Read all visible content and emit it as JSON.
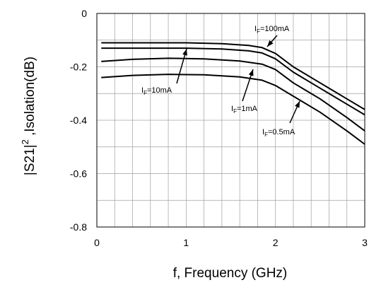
{
  "chart_data": {
    "type": "line",
    "xlabel": "f, Frequency (GHz)",
    "ylabel_main": "|S21|",
    "ylabel_sup": "2",
    "ylabel_rest": " ,Isolation(dB)",
    "xlim": [
      0,
      3
    ],
    "ylim": [
      -0.8,
      0
    ],
    "xticks": [
      0,
      1,
      2,
      3
    ],
    "xtick_labels": [
      "0",
      "1",
      "2",
      "3"
    ],
    "yticks": [
      0,
      -0.2,
      -0.4,
      -0.6,
      -0.8
    ],
    "ytick_labels": [
      "0",
      "-0.2",
      "-0.4",
      "-0.6",
      "-0.8"
    ],
    "grid": true,
    "series": [
      {
        "label_main": "I",
        "label_sub": "F",
        "label_rest": "=100mA",
        "x": [
          0.05,
          0.5,
          1.0,
          1.4,
          1.7,
          1.85,
          2.0,
          2.2,
          2.5,
          2.8,
          3.0
        ],
        "y": [
          -0.11,
          -0.11,
          -0.11,
          -0.113,
          -0.12,
          -0.128,
          -0.15,
          -0.2,
          -0.26,
          -0.32,
          -0.36
        ]
      },
      {
        "label_main": "I",
        "label_sub": "F",
        "label_rest": "=10mA",
        "x": [
          0.05,
          0.5,
          1.0,
          1.4,
          1.7,
          1.85,
          2.0,
          2.2,
          2.5,
          2.8,
          3.0
        ],
        "y": [
          -0.13,
          -0.13,
          -0.13,
          -0.133,
          -0.14,
          -0.148,
          -0.17,
          -0.22,
          -0.28,
          -0.34,
          -0.38
        ]
      },
      {
        "label_main": "I",
        "label_sub": "F",
        "label_rest": "=1mA",
        "x": [
          0.05,
          0.4,
          0.8,
          1.2,
          1.6,
          1.85,
          2.0,
          2.2,
          2.5,
          2.8,
          3.0
        ],
        "y": [
          -0.18,
          -0.172,
          -0.168,
          -0.17,
          -0.178,
          -0.19,
          -0.21,
          -0.26,
          -0.32,
          -0.39,
          -0.44
        ]
      },
      {
        "label_main": "I",
        "label_sub": "F",
        "label_rest": "=0.5mA",
        "x": [
          0.05,
          0.4,
          0.8,
          1.2,
          1.6,
          1.85,
          2.0,
          2.2,
          2.5,
          2.8,
          3.0
        ],
        "y": [
          -0.24,
          -0.232,
          -0.228,
          -0.23,
          -0.238,
          -0.25,
          -0.27,
          -0.31,
          -0.37,
          -0.44,
          -0.49
        ]
      }
    ]
  }
}
